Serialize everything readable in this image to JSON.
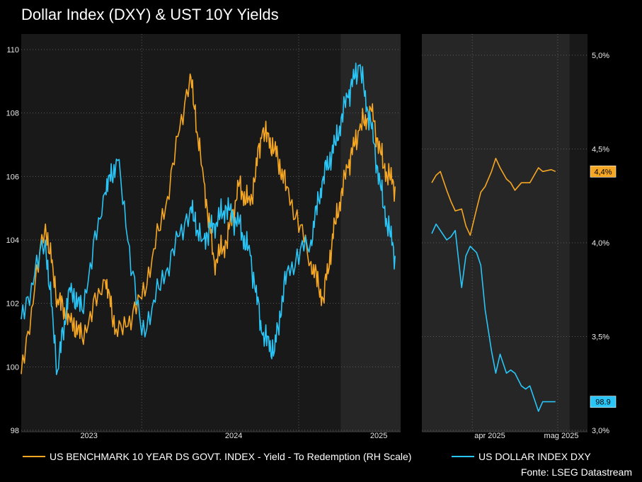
{
  "chart_data": {
    "type": "line",
    "title": "Dollar Index (DXY) & UST 10Y Yields",
    "source": "Fonte: LSEG Datastream",
    "colors": {
      "yield": "#f5a623",
      "dxy": "#29c5f6",
      "background": "#191919",
      "highlight": "#262626",
      "grid": "#5a5a5a"
    },
    "grid": true,
    "legend_position": "bottom",
    "left_axis": {
      "ylim": [
        98,
        110
      ],
      "ticks": [
        "98",
        "100",
        "102",
        "104",
        "106",
        "108",
        "110"
      ]
    },
    "right_axis": {
      "ylim": [
        3.0,
        5.0
      ],
      "ticks": [
        "3,0%",
        "3,5%",
        "4,0%",
        "4,5%",
        "5,0%"
      ]
    },
    "x_labels_left": [
      "2023",
      "2024",
      "2025"
    ],
    "x_labels_right": [
      "apr 2025",
      "mag 2025"
    ],
    "series": [
      {
        "name": "US BENCHMARK 10 YEAR DS GOVT. INDEX - Yield - To Redemption (RH Scale)",
        "axis": "right",
        "last_label": "4,4%",
        "panel_long": {
          "x": [
            "2022-08",
            "2022-10",
            "2022-11",
            "2022-12",
            "2023-01",
            "2023-03",
            "2023-04",
            "2023-06",
            "2023-08",
            "2023-10",
            "2023-11",
            "2023-12",
            "2024-01",
            "2024-02",
            "2024-03",
            "2024-04",
            "2024-05",
            "2024-06",
            "2024-08",
            "2024-09",
            "2024-10",
            "2024-11",
            "2024-12",
            "2025-01",
            "2025-02",
            "2025-03"
          ],
          "values": [
            3.3,
            4.1,
            3.7,
            3.6,
            3.5,
            3.8,
            3.5,
            3.7,
            4.2,
            4.9,
            4.4,
            3.9,
            4.0,
            4.3,
            4.2,
            4.6,
            4.5,
            4.3,
            3.9,
            3.7,
            4.1,
            4.4,
            4.6,
            4.7,
            4.4,
            4.3
          ]
        },
        "panel_daily": {
          "x": [
            "2025-03-03",
            "2025-03-05",
            "2025-03-07",
            "2025-03-10",
            "2025-03-12",
            "2025-03-14",
            "2025-03-17",
            "2025-03-19",
            "2025-03-21",
            "2025-03-24",
            "2025-03-26",
            "2025-03-28",
            "2025-03-31",
            "2025-04-02",
            "2025-04-04",
            "2025-04-07",
            "2025-04-09",
            "2025-04-11",
            "2025-04-14",
            "2025-04-16",
            "2025-04-18",
            "2025-04-22",
            "2025-04-24",
            "2025-04-28",
            "2025-04-30"
          ],
          "values": [
            4.32,
            4.36,
            4.38,
            4.28,
            4.22,
            4.17,
            4.18,
            4.09,
            4.04,
            4.18,
            4.27,
            4.3,
            4.38,
            4.45,
            4.4,
            4.34,
            4.32,
            4.28,
            4.32,
            4.32,
            4.32,
            4.4,
            4.38,
            4.39,
            4.38
          ]
        }
      },
      {
        "name": "US DOLLAR INDEX DXY",
        "axis": "left",
        "last_label": "98.9",
        "panel_long": {
          "x": [
            "2022-08",
            "2022-10",
            "2022-11",
            "2022-12",
            "2023-01",
            "2023-03",
            "2023-04",
            "2023-06",
            "2023-08",
            "2023-10",
            "2023-11",
            "2023-12",
            "2024-01",
            "2024-02",
            "2024-03",
            "2024-04",
            "2024-05",
            "2024-06",
            "2024-08",
            "2024-09",
            "2024-10",
            "2024-11",
            "2024-12",
            "2025-01",
            "2025-02",
            "2025-03"
          ],
          "values": [
            101.5,
            104.0,
            99.9,
            102.5,
            101.8,
            105.5,
            106.5,
            101.0,
            103.0,
            105.0,
            104.0,
            104.5,
            105.0,
            104.5,
            103.5,
            101.0,
            100.5,
            103.0,
            104.0,
            106.0,
            107.0,
            108.5,
            109.5,
            107.5,
            105.0,
            103.5
          ]
        },
        "panel_daily": {
          "x": [
            "2025-03-03",
            "2025-03-05",
            "2025-03-07",
            "2025-03-10",
            "2025-03-12",
            "2025-03-14",
            "2025-03-17",
            "2025-03-19",
            "2025-03-21",
            "2025-03-24",
            "2025-03-26",
            "2025-03-28",
            "2025-03-31",
            "2025-04-02",
            "2025-04-04",
            "2025-04-07",
            "2025-04-09",
            "2025-04-11",
            "2025-04-14",
            "2025-04-16",
            "2025-04-18",
            "2025-04-22",
            "2025-04-24",
            "2025-04-28",
            "2025-04-30"
          ],
          "values": [
            104.2,
            104.5,
            104.3,
            104.0,
            104.1,
            104.3,
            102.5,
            103.5,
            103.8,
            103.6,
            103.2,
            101.8,
            100.5,
            99.8,
            100.4,
            99.8,
            99.9,
            99.8,
            99.4,
            99.3,
            99.4,
            98.6,
            98.9,
            98.9,
            98.9
          ]
        }
      }
    ]
  }
}
